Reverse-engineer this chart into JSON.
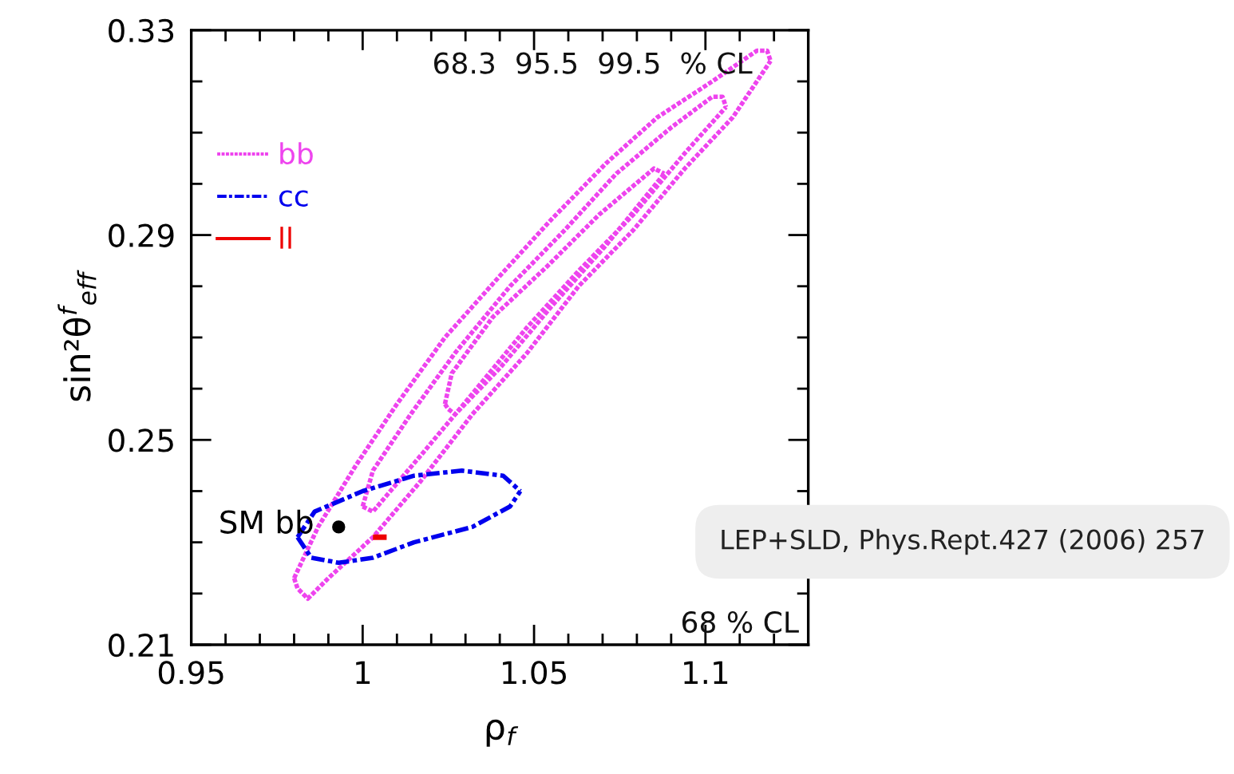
{
  "chart_data": {
    "type": "line",
    "xlabel": "ρ$_{f}$",
    "ylabel": "sin²θ$^{f}$$_{eff}$",
    "xlim": [
      0.95,
      1.13
    ],
    "ylim": [
      0.21,
      0.33
    ],
    "xticks": [
      0.95,
      {
        "value": 0.96,
        "label": null
      },
      {
        "value": 0.97,
        "label": null
      },
      {
        "value": 0.98,
        "label": null
      },
      {
        "value": 0.99,
        "label": null
      },
      1,
      {
        "value": 1.01,
        "label": null
      },
      {
        "value": 1.02,
        "label": null
      },
      {
        "value": 1.03,
        "label": null
      },
      {
        "value": 1.04,
        "label": null
      },
      1.05,
      {
        "value": 1.06,
        "label": null
      },
      {
        "value": 1.07,
        "label": null
      },
      {
        "value": 1.08,
        "label": null
      },
      {
        "value": 1.09,
        "label": null
      },
      1.1,
      {
        "value": 1.11,
        "label": null
      },
      {
        "value": 1.12,
        "label": null
      }
    ],
    "yticks": [
      0.21,
      {
        "value": 0.22,
        "label": null
      },
      {
        "value": 0.23,
        "label": null
      },
      {
        "value": 0.24,
        "label": null
      },
      0.25,
      {
        "value": 0.26,
        "label": null
      },
      {
        "value": 0.27,
        "label": null
      },
      {
        "value": 0.28,
        "label": null
      },
      0.29,
      {
        "value": 0.3,
        "label": null
      },
      {
        "value": 0.31,
        "label": null
      },
      {
        "value": 0.32,
        "label": null
      },
      0.33
    ],
    "grid": false,
    "legend": "top left",
    "annotations": [
      "68.3  95.5  99.5  % CL",
      "68 % CL",
      "LEP+SLD, Phys.Rept.427 (2006) 257",
      {
        "text": "SM bb",
        "x": 0.993,
        "y": 0.233
      }
    ],
    "series": [
      {
        "name": "bb",
        "color": "#ee44ee",
        "line_style": "dotted",
        "x": [
          0.98,
          0.981,
          0.984,
          0.99,
          1.003,
          1.017,
          1.032,
          1.048,
          1.063,
          1.079,
          1.094,
          1.108,
          1.119
        ],
        "values": [
          0.223,
          0.221,
          0.219,
          0.223,
          0.231,
          0.242,
          0.255,
          0.267,
          0.28,
          0.291,
          0.303,
          0.313,
          0.324
        ]
      },
      {
        "color": "#ee44ee",
        "line_style": "dotted",
        "x": [
          0.98,
          0.987,
          0.998,
          1.01,
          1.024,
          1.04,
          1.055,
          1.071,
          1.086,
          1.102,
          1.115,
          1.118,
          1.119
        ],
        "values": [
          0.223,
          0.233,
          0.245,
          0.257,
          0.27,
          0.282,
          0.293,
          0.304,
          0.313,
          0.32,
          0.326,
          0.326,
          0.324
        ]
      },
      {
        "color": "#ee44ee",
        "line_style": "dotted",
        "x": [
          1.0,
          1.003,
          1.017,
          1.032,
          1.048,
          1.063,
          1.079,
          1.094,
          1.106
        ],
        "values": [
          0.237,
          0.236,
          0.247,
          0.259,
          0.272,
          0.283,
          0.294,
          0.306,
          0.315
        ]
      },
      {
        "color": "#ee44ee",
        "line_style": "dotted",
        "x": [
          1.0,
          1.003,
          1.014,
          1.027,
          1.043,
          1.059,
          1.074,
          1.09,
          1.102,
          1.105,
          1.106
        ],
        "values": [
          0.237,
          0.244,
          0.255,
          0.267,
          0.28,
          0.291,
          0.302,
          0.311,
          0.317,
          0.317,
          0.315
        ]
      },
      {
        "color": "#ee44ee",
        "line_style": "dotted",
        "x": [
          1.024,
          1.025,
          1.027,
          1.04,
          1.055,
          1.071,
          1.088
        ],
        "values": [
          0.257,
          0.256,
          0.255,
          0.264,
          0.276,
          0.288,
          0.302
        ]
      },
      {
        "color": "#ee44ee",
        "line_style": "dotted",
        "x": [
          1.024,
          1.026,
          1.038,
          1.054,
          1.069,
          1.085,
          1.088
        ],
        "values": [
          0.257,
          0.263,
          0.274,
          0.284,
          0.294,
          0.303,
          0.302
        ]
      },
      {
        "name": "cc",
        "color": "#0000ee",
        "line_style": "dashed",
        "x": [
          0.981,
          0.986,
          1.0,
          1.015,
          1.029,
          1.041,
          1.046
        ],
        "values": [
          0.231,
          0.236,
          0.24,
          0.243,
          0.244,
          0.243,
          0.24
        ]
      },
      {
        "color": "#0000ee",
        "line_style": "dashed",
        "x": [
          0.981,
          0.985,
          0.993,
          1.003,
          1.015,
          1.032,
          1.043,
          1.046
        ],
        "values": [
          0.231,
          0.227,
          0.226,
          0.227,
          0.23,
          0.233,
          0.237,
          0.24
        ]
      },
      {
        "name": "ll",
        "color": "#ee0000",
        "line_style": "solid",
        "x": [
          1.003,
          1.007
        ],
        "values": [
          0.231,
          0.231
        ]
      },
      {
        "type": "scatter",
        "color": "#000000",
        "marker": "circle",
        "x": [
          0.993
        ],
        "values": [
          0.233
        ]
      }
    ]
  }
}
